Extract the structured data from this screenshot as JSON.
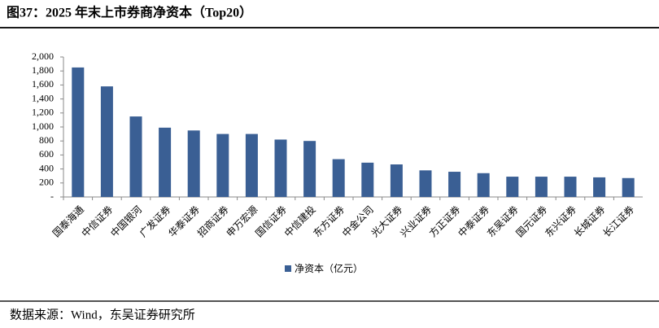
{
  "chart_data": {
    "type": "bar",
    "title": "图37：2025 年末上市券商净资本（Top20）",
    "source": "数据来源：Wind，东吴证券研究所",
    "categories": [
      "国泰海通",
      "中信证券",
      "中国银河",
      "广发证券",
      "华泰证券",
      "招商证券",
      "申万宏源",
      "国信证券",
      "中信建投",
      "东方证券",
      "中金公司",
      "光大证券",
      "兴业证券",
      "方正证券",
      "中泰证券",
      "东吴证券",
      "国元证券",
      "东兴证券",
      "长城证券",
      "长江证券"
    ],
    "series": [
      {
        "name": "净资本（亿元）",
        "color": "#3a5f94",
        "values": [
          1850,
          1580,
          1150,
          990,
          950,
          900,
          900,
          820,
          800,
          540,
          490,
          465,
          380,
          360,
          340,
          290,
          290,
          290,
          280,
          270
        ]
      }
    ],
    "ylim": [
      0,
      2000
    ],
    "yticks": [
      {
        "value": 0,
        "label": "-"
      },
      200,
      400,
      600,
      800,
      {
        "value": 1000,
        "label": "1,000"
      },
      {
        "value": 1200,
        "label": "1,200"
      },
      {
        "value": 1400,
        "label": "1,400"
      },
      {
        "value": 1600,
        "label": "1,600"
      },
      {
        "value": 1800,
        "label": "1,800"
      },
      {
        "value": 2000,
        "label": "2,000"
      }
    ],
    "grid": false,
    "legend": "bottom"
  }
}
